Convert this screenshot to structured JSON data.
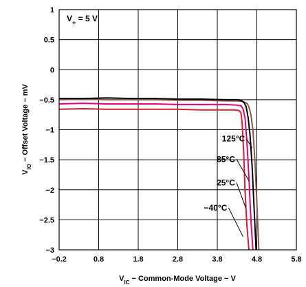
{
  "chart_data": {
    "type": "line",
    "xlabel": {
      "main": "V",
      "sub": "IC",
      "rest": " − Common-Mode Voltage − V"
    },
    "ylabel": {
      "main": "V",
      "sub": "IO",
      "rest": " − Offset Voltage − mV"
    },
    "annotation": {
      "main": "V",
      "sub": "+",
      "rest": " = 5 V"
    },
    "xlim": [
      -0.2,
      5.8
    ],
    "ylim": [
      -3,
      1
    ],
    "x_ticks": [
      -0.2,
      0.8,
      1.8,
      2.8,
      3.8,
      4.8,
      5.8
    ],
    "x_tick_labels": [
      "−0.2",
      "0.8",
      "1.8",
      "2.8",
      "3.8",
      "4.8",
      "5.8"
    ],
    "y_ticks": [
      1,
      0.5,
      0,
      -0.5,
      -1,
      -1.5,
      -2,
      -2.5,
      -3
    ],
    "y_tick_labels": [
      "1",
      "0.5",
      "0",
      "−0.5",
      "−1",
      "−1.5",
      "−2",
      "−2.5",
      "−3"
    ],
    "grid": true,
    "series": [
      {
        "name": "125°C",
        "color": "#8b5a4a",
        "label_at": [
          4.5,
          -1.15
        ],
        "leader_to": [
          4.68,
          -1.3
        ],
        "x": [
          -0.2,
          0.4,
          1.0,
          1.6,
          2.2,
          2.8,
          3.4,
          4.0,
          4.3,
          4.45,
          4.55,
          4.6,
          4.65,
          4.7,
          4.75,
          4.8,
          4.85
        ],
        "y": [
          -0.5,
          -0.49,
          -0.5,
          -0.5,
          -0.5,
          -0.51,
          -0.51,
          -0.52,
          -0.52,
          -0.53,
          -0.56,
          -0.62,
          -0.75,
          -1.0,
          -1.5,
          -2.2,
          -3.0
        ]
      },
      {
        "name": "85°C",
        "color": "#000000",
        "label_at": [
          4.25,
          -1.49
        ],
        "leader_to": [
          4.6,
          -1.85
        ],
        "x": [
          -0.2,
          0.4,
          1.0,
          1.6,
          2.2,
          2.8,
          3.4,
          4.0,
          4.3,
          4.4,
          4.48,
          4.53,
          4.58,
          4.63,
          4.68,
          4.73,
          4.78
        ],
        "y": [
          -0.48,
          -0.48,
          -0.47,
          -0.48,
          -0.48,
          -0.49,
          -0.49,
          -0.5,
          -0.5,
          -0.51,
          -0.55,
          -0.62,
          -0.8,
          -1.1,
          -1.6,
          -2.3,
          -3.0
        ]
      },
      {
        "name": "25°C",
        "color": "#e8007a",
        "label_at": [
          4.25,
          -1.88
        ],
        "leader_to": [
          4.52,
          -2.3
        ],
        "x": [
          -0.2,
          0.4,
          1.0,
          1.6,
          2.2,
          2.8,
          3.4,
          4.0,
          4.3,
          4.4,
          4.45,
          4.5,
          4.55,
          4.6,
          4.65,
          4.7
        ],
        "y": [
          -0.57,
          -0.56,
          -0.57,
          -0.57,
          -0.57,
          -0.58,
          -0.58,
          -0.58,
          -0.59,
          -0.6,
          -0.65,
          -0.8,
          -1.2,
          -1.8,
          -2.5,
          -3.0
        ]
      },
      {
        "name": "−40°C",
        "color": "#d21e2d",
        "label_at": [
          4.05,
          -2.3
        ],
        "leader_to": [
          4.45,
          -2.78
        ],
        "x": [
          -0.2,
          0.4,
          1.0,
          1.6,
          2.2,
          2.8,
          3.4,
          4.0,
          4.25,
          4.35,
          4.4,
          4.43,
          4.47,
          4.5,
          4.55,
          4.6
        ],
        "y": [
          -0.66,
          -0.65,
          -0.66,
          -0.66,
          -0.66,
          -0.66,
          -0.67,
          -0.67,
          -0.67,
          -0.68,
          -0.72,
          -0.9,
          -1.4,
          -2.0,
          -2.6,
          -3.0
        ]
      }
    ]
  }
}
